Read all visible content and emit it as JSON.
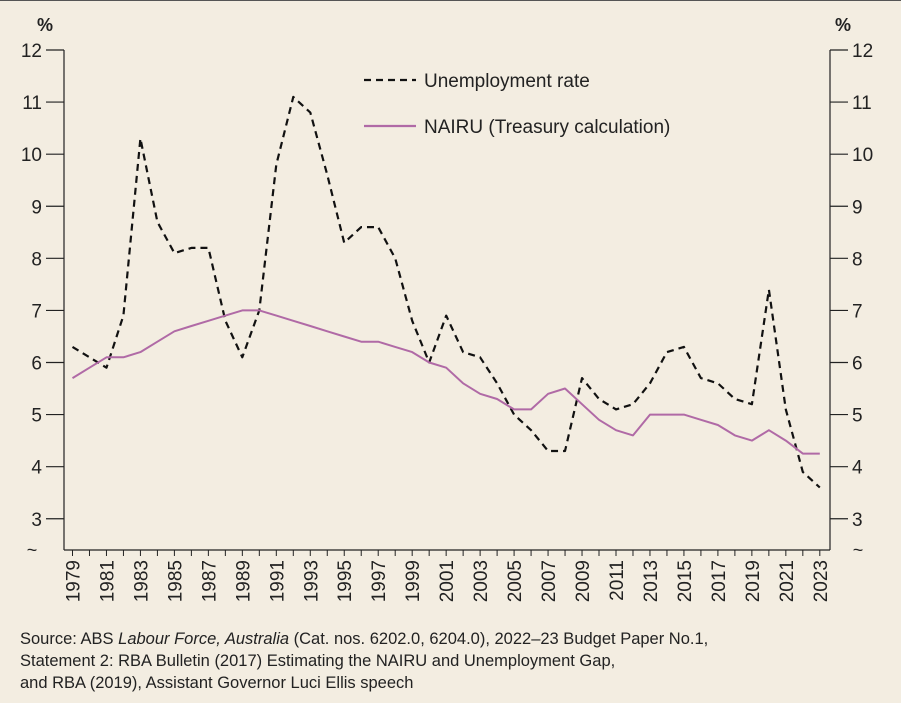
{
  "chart_data": {
    "type": "line",
    "left_unit": "%",
    "right_unit": "%",
    "y_ticks": [
      3,
      4,
      5,
      6,
      7,
      8,
      9,
      10,
      11,
      12
    ],
    "ylim": [
      2.4,
      12
    ],
    "axis_break_symbol": "~",
    "xlim": [
      1978.5,
      2023.6
    ],
    "x_tick_labels": [
      "1979",
      "1981",
      "1983",
      "1985",
      "1987",
      "1989",
      "1991",
      "1993",
      "1995",
      "1997",
      "1999",
      "2001",
      "2003",
      "2005",
      "2007",
      "2009",
      "2011",
      "2013",
      "2015",
      "2017",
      "2019",
      "2021",
      "2023"
    ],
    "legend_position": "top-center",
    "grid": false,
    "series": [
      {
        "name": "Unemployment rate",
        "style": "dashed",
        "color": "#111111",
        "x": [
          1979,
          1980,
          1981,
          1982,
          1983,
          1984,
          1985,
          1986,
          1987,
          1988,
          1989,
          1990,
          1991,
          1992,
          1993,
          1994,
          1995,
          1996,
          1997,
          1998,
          1999,
          2000,
          2001,
          2002,
          2003,
          2004,
          2005,
          2006,
          2007,
          2008,
          2009,
          2010,
          2011,
          2012,
          2013,
          2014,
          2015,
          2016,
          2017,
          2018,
          2019,
          2020,
          2021,
          2022,
          2023
        ],
        "y": [
          6.3,
          6.1,
          5.9,
          6.9,
          10.3,
          8.7,
          8.1,
          8.2,
          8.2,
          6.8,
          6.1,
          7.0,
          9.8,
          11.1,
          10.8,
          9.6,
          8.3,
          8.6,
          8.6,
          8.0,
          6.8,
          6.0,
          6.9,
          6.2,
          6.1,
          5.6,
          5.0,
          4.7,
          4.3,
          4.3,
          5.7,
          5.3,
          5.1,
          5.2,
          5.6,
          6.2,
          6.3,
          5.7,
          5.6,
          5.3,
          5.2,
          7.4,
          5.1,
          3.9,
          3.6
        ]
      },
      {
        "name": "NAIRU (Treasury calculation)",
        "style": "solid",
        "color": "#b06aa6",
        "x": [
          1979,
          1980,
          1981,
          1982,
          1983,
          1984,
          1985,
          1986,
          1987,
          1988,
          1989,
          1990,
          1991,
          1992,
          1993,
          1994,
          1995,
          1996,
          1997,
          1998,
          1999,
          2000,
          2001,
          2002,
          2003,
          2004,
          2005,
          2006,
          2007,
          2008,
          2009,
          2010,
          2011,
          2012,
          2013,
          2014,
          2015,
          2016,
          2017,
          2018,
          2019,
          2020,
          2021,
          2022,
          2023
        ],
        "y": [
          5.7,
          5.9,
          6.1,
          6.1,
          6.2,
          6.4,
          6.6,
          6.7,
          6.8,
          6.9,
          7.0,
          7.0,
          6.9,
          6.8,
          6.7,
          6.6,
          6.5,
          6.4,
          6.4,
          6.3,
          6.2,
          6.0,
          5.9,
          5.6,
          5.4,
          5.3,
          5.1,
          5.1,
          5.4,
          5.5,
          5.2,
          4.9,
          4.7,
          4.6,
          5.0,
          5.0,
          5.0,
          4.9,
          4.8,
          4.6,
          4.5,
          4.7,
          4.5,
          4.25,
          4.25
        ]
      }
    ]
  },
  "source": {
    "prefix": "Source: ABS ",
    "italic": "Labour Force, Australia",
    "line1_rest": " (Cat. nos. 6202.0, 6204.0), 2022–23 Budget Paper No.1,",
    "line2": "Statement 2: RBA Bulletin (2017) Estimating the NAIRU and Unemployment Gap,",
    "line3": "and RBA (2019), Assistant Governor Luci Ellis speech"
  }
}
